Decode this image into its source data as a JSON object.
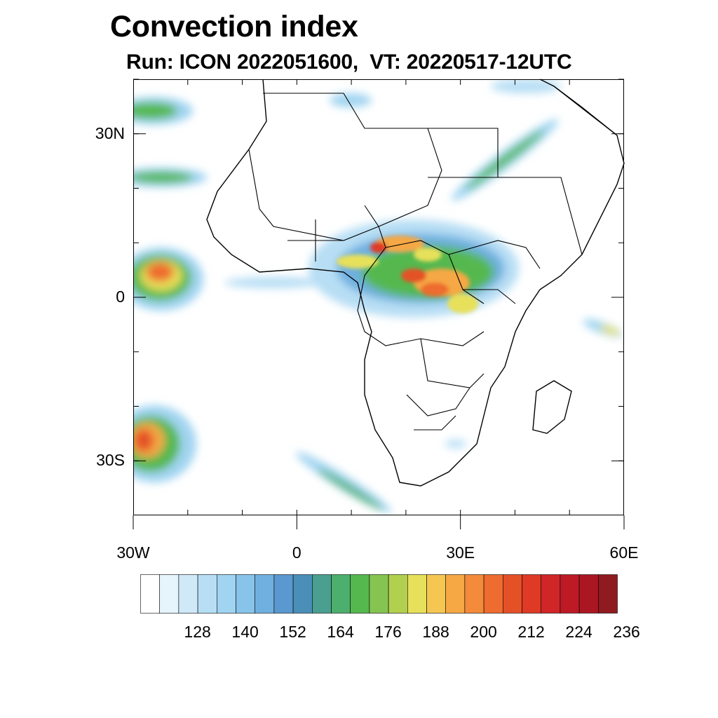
{
  "title": "Convection index",
  "subtitle": "Run: ICON 2022051600,  VT: 20220517-12UTC",
  "map": {
    "lon_range": [
      -30,
      60
    ],
    "lat_range": [
      -40,
      40
    ],
    "lat_ticks": [
      {
        "lat": 30,
        "label": "30N"
      },
      {
        "lat": 0,
        "label": "0"
      },
      {
        "lat": -30,
        "label": "30S"
      }
    ],
    "lon_ticks": [
      {
        "lon": -30,
        "label": "30W"
      },
      {
        "lon": 0,
        "label": "0"
      },
      {
        "lon": 30,
        "label": "30E"
      },
      {
        "lon": 60,
        "label": "60E"
      }
    ],
    "field": "Convection index (shaded)"
  },
  "colorbar": {
    "colors": [
      "#ffffff",
      "#e6f4fc",
      "#cfe9f8",
      "#b7def4",
      "#a0d4f1",
      "#88c4ea",
      "#70b0e0",
      "#5a98d0",
      "#4a8fb8",
      "#4a9f90",
      "#4caf6e",
      "#55b84f",
      "#86c451",
      "#b2d04f",
      "#e7e05a",
      "#f5c752",
      "#f5a844",
      "#f38b3a",
      "#ee6c2f",
      "#e55127",
      "#de3a26",
      "#d02628",
      "#bd1a26",
      "#aa1722",
      "#8f1a1f"
    ],
    "labels": [
      "128",
      "140",
      "152",
      "164",
      "176",
      "188",
      "200",
      "212",
      "224",
      "236"
    ]
  }
}
